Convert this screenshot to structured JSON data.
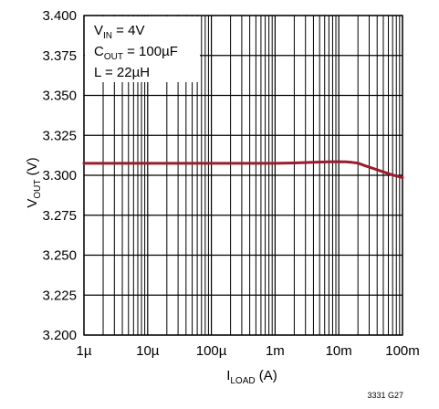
{
  "chart_data": {
    "type": "line",
    "x_scale": "log",
    "x_tick_labels": [
      "1µ",
      "10µ",
      "100µ",
      "1m",
      "10m",
      "100m"
    ],
    "x_ticks": [
      1e-06,
      1e-05,
      0.0001,
      0.001,
      0.01,
      0.1
    ],
    "xlim": [
      1e-06,
      0.1
    ],
    "y_tick_labels": [
      "3.400",
      "3.375",
      "3.350",
      "3.325",
      "3.300",
      "3.275",
      "3.250",
      "3.225",
      "3.200"
    ],
    "y_ticks": [
      3.4,
      3.375,
      3.35,
      3.325,
      3.3,
      3.275,
      3.25,
      3.225,
      3.2
    ],
    "ylim": [
      3.2,
      3.4
    ],
    "xlabel": {
      "main": "I",
      "sub": "LOAD",
      "unit": " (A)"
    },
    "ylabel": {
      "main": "V",
      "sub": "OUT",
      "unit": " (V)"
    },
    "annotation": [
      {
        "main": "V",
        "sub": "IN",
        "rest": " = 4V"
      },
      {
        "main": "C",
        "sub": "OUT",
        "rest": " = 100µF"
      },
      {
        "main": "L = 22µH",
        "sub": "",
        "rest": ""
      }
    ],
    "figure_id": "3331 G27",
    "grid": true,
    "line_color": "#9b1c2c",
    "series": [
      {
        "x": [
          1e-06,
          1e-05,
          0.0001,
          0.001,
          0.002,
          0.004,
          0.007,
          0.01,
          0.013,
          0.016,
          0.02,
          0.025,
          0.03,
          0.04,
          0.05,
          0.07,
          0.1
        ],
        "y": [
          3.3075,
          3.3075,
          3.3075,
          3.3075,
          3.3077,
          3.3081,
          3.3084,
          3.3085,
          3.3084,
          3.3081,
          3.3076,
          3.3062,
          3.3051,
          3.3035,
          3.3021,
          3.3002,
          3.2985
        ]
      }
    ]
  }
}
